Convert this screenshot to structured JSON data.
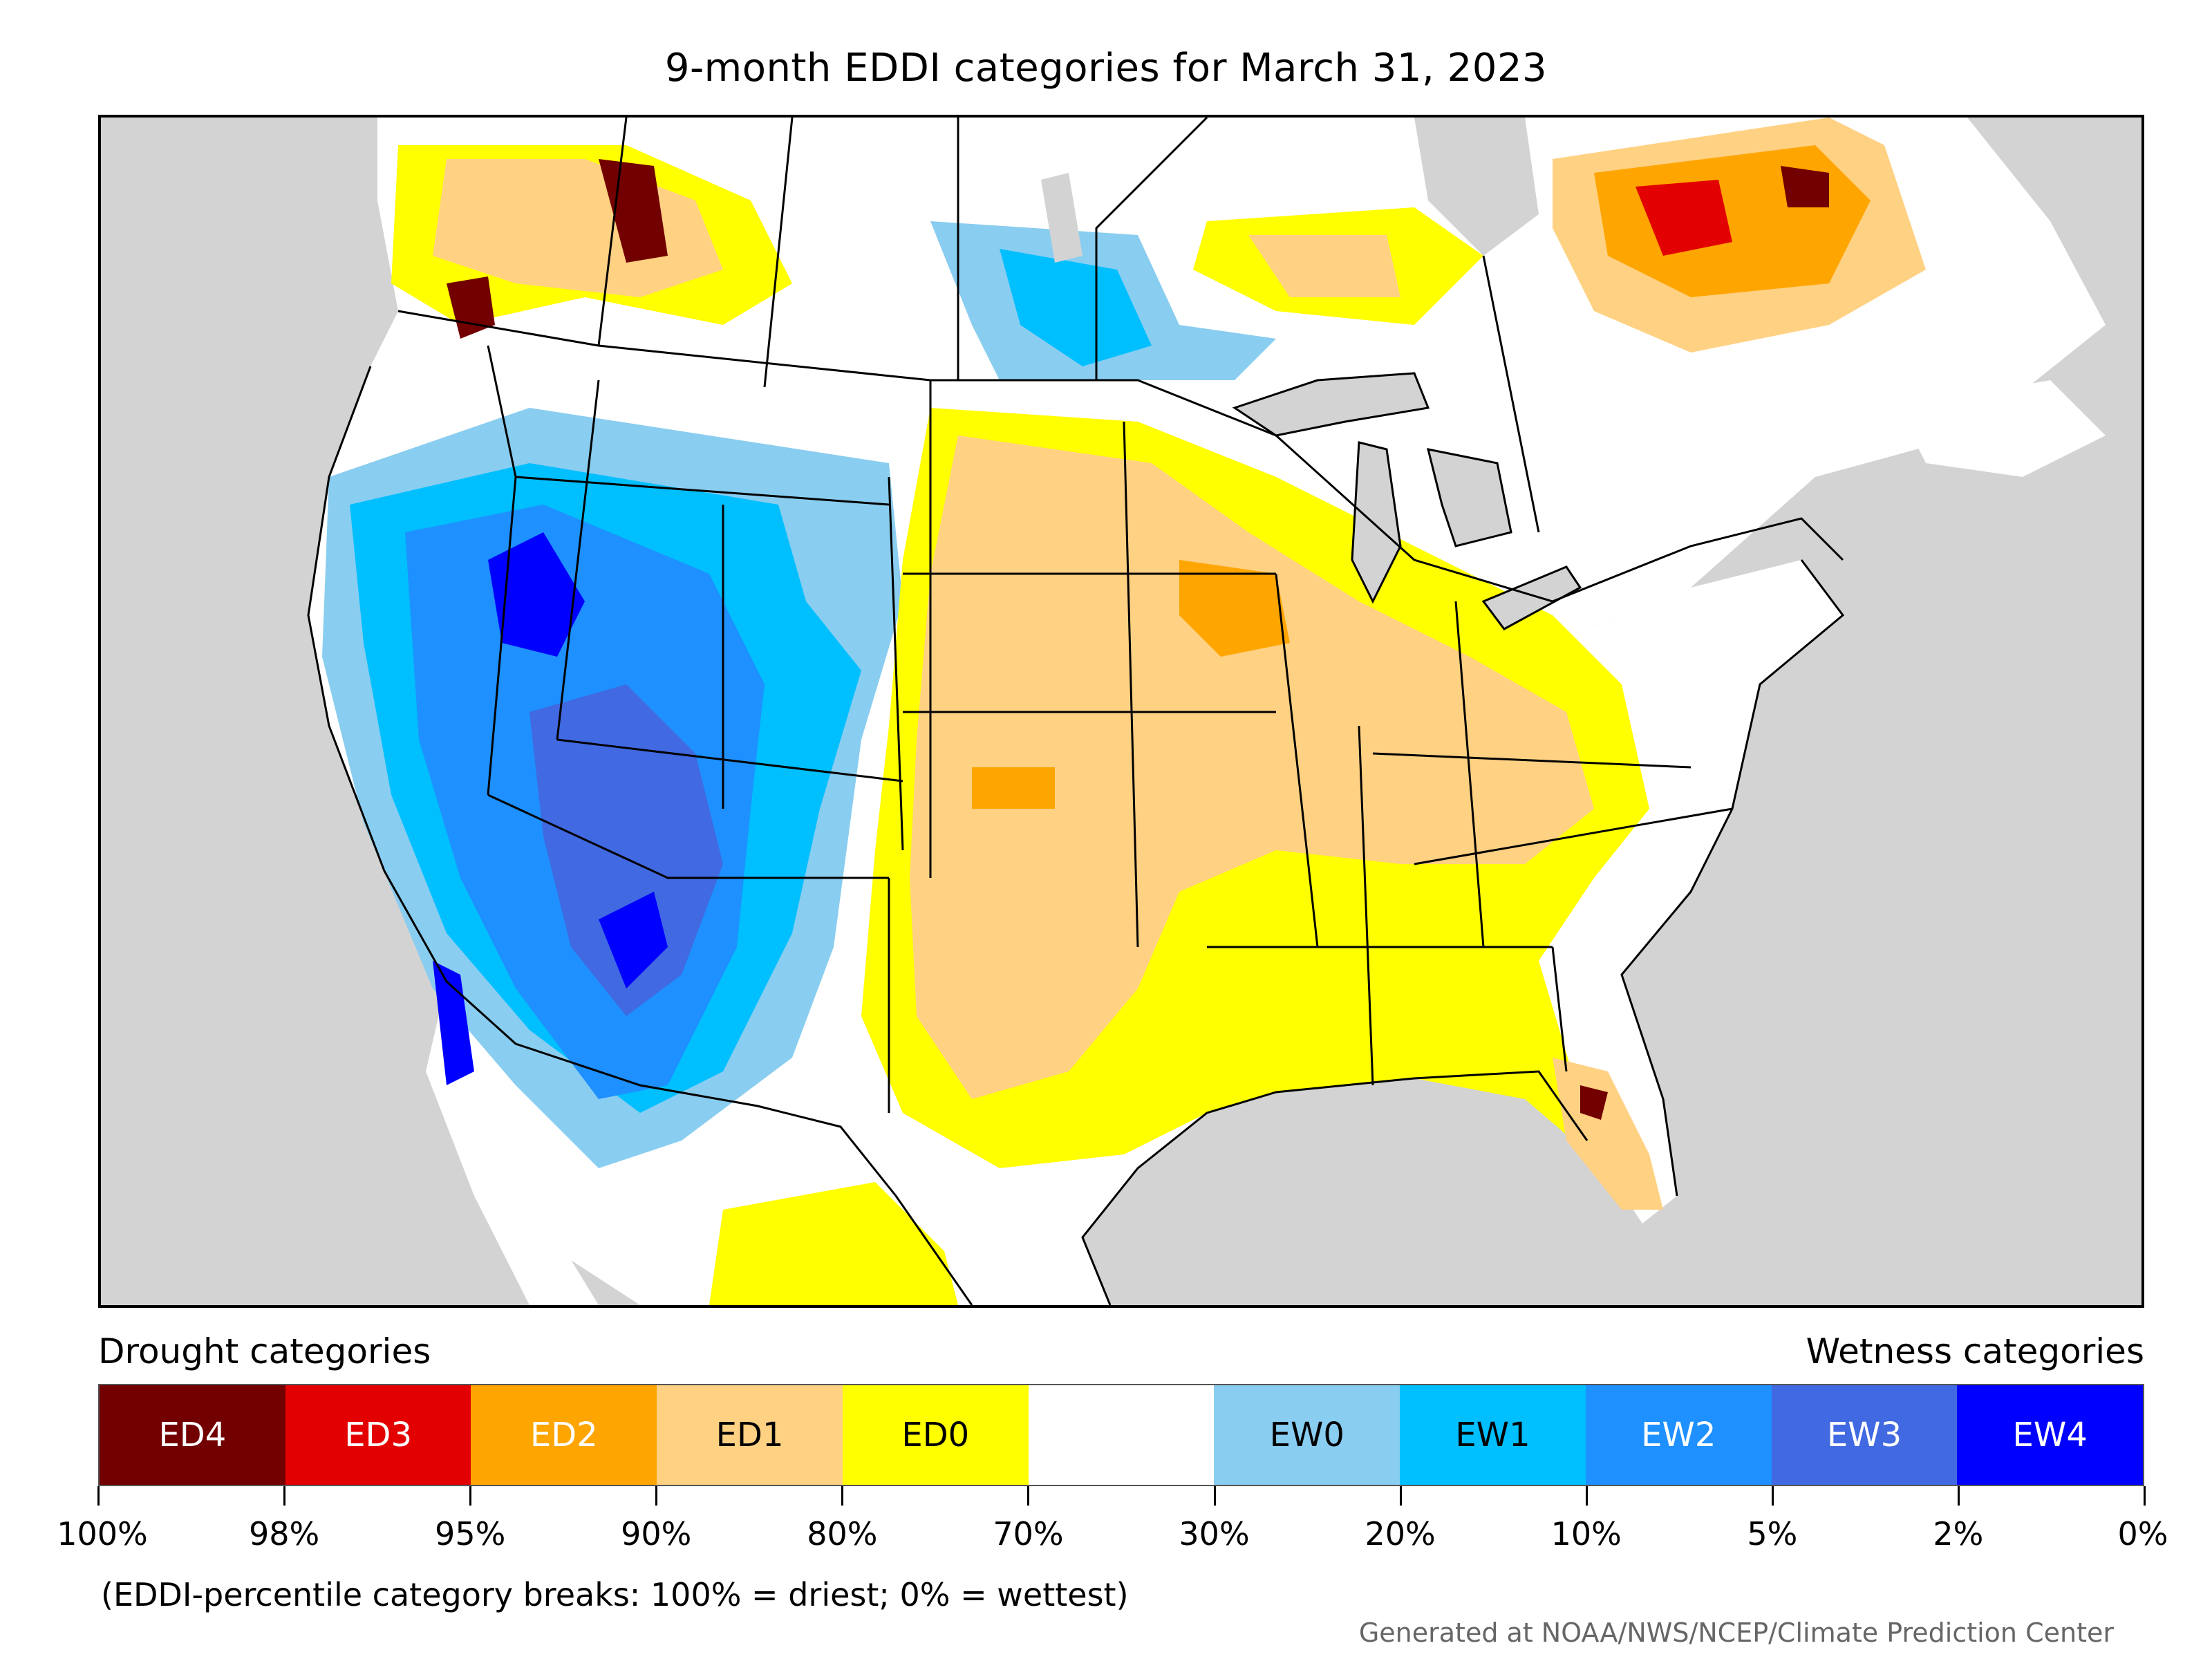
{
  "title": "9-month EDDI categories for March 31, 2023",
  "legend": {
    "left_heading": "Drought categories",
    "right_heading": "Wetness categories",
    "categories": [
      {
        "label": "ED4",
        "color": "#720000",
        "text_color": "#ffffff"
      },
      {
        "label": "ED3",
        "color": "#e30000",
        "text_color": "#ffffff"
      },
      {
        "label": "ED2",
        "color": "#ffa500",
        "text_color": "#ffffff"
      },
      {
        "label": "ED1",
        "color": "#ffd183",
        "text_color": "#000000"
      },
      {
        "label": "ED0",
        "color": "#ffff00",
        "text_color": "#000000"
      },
      {
        "label": "",
        "color": "#ffffff",
        "text_color": "#000000"
      },
      {
        "label": "EW0",
        "color": "#89cdf0",
        "text_color": "#000000"
      },
      {
        "label": "EW1",
        "color": "#00bfff",
        "text_color": "#000000"
      },
      {
        "label": "EW2",
        "color": "#1e90ff",
        "text_color": "#ffffff"
      },
      {
        "label": "EW3",
        "color": "#4169e1",
        "text_color": "#ffffff"
      },
      {
        "label": "EW4",
        "color": "#0000ff",
        "text_color": "#ffffff"
      }
    ],
    "breaks": [
      "100%",
      "98%",
      "95%",
      "90%",
      "80%",
      "70%",
      "30%",
      "20%",
      "10%",
      "5%",
      "2%",
      "0%"
    ]
  },
  "note": "(EDDI-percentile category breaks: 100% = driest; 0% = wettest)",
  "credit": "Generated at NOAA/NWS/NCEP/Climate Prediction Center",
  "map_colors": {
    "ocean": "#d3d3d3",
    "land": "#ffffff",
    "border": "#000000"
  }
}
